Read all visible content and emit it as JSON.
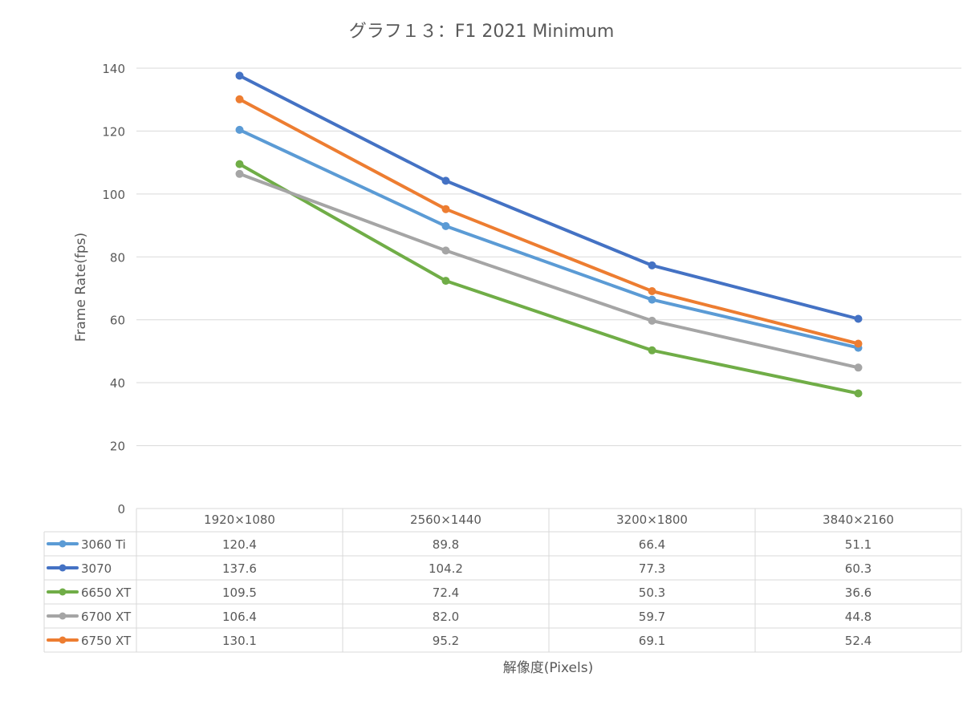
{
  "chart_data": {
    "type": "line",
    "title": "グラフ１３：F1 2021 Minimum",
    "xlabel": "解像度(Pixels)",
    "ylabel": "Frame Rate(fps)",
    "ylim": [
      0,
      140
    ],
    "yticks": [
      0,
      20,
      40,
      60,
      80,
      100,
      120,
      140
    ],
    "grid": true,
    "legend": "data-table",
    "categories": [
      "1920×1080",
      "2560×1440",
      "3200×1800",
      "3840×2160"
    ],
    "series": [
      {
        "name": "3060 Ti",
        "color": "#5b9bd5",
        "values": [
          "120.4",
          "89.8",
          "66.4",
          "51.1"
        ]
      },
      {
        "name": "3070",
        "color": "#4472c4",
        "values": [
          "137.6",
          "104.2",
          "77.3",
          "60.3"
        ]
      },
      {
        "name": "6650 XT",
        "color": "#70ad47",
        "values": [
          "109.5",
          "72.4",
          "50.3",
          "36.6"
        ]
      },
      {
        "name": "6700 XT",
        "color": "#a5a5a5",
        "values": [
          "106.4",
          "82.0",
          "59.7",
          "44.8"
        ]
      },
      {
        "name": "6750 XT",
        "color": "#ed7d31",
        "values": [
          "130.1",
          "95.2",
          "69.1",
          "52.4"
        ]
      }
    ]
  }
}
